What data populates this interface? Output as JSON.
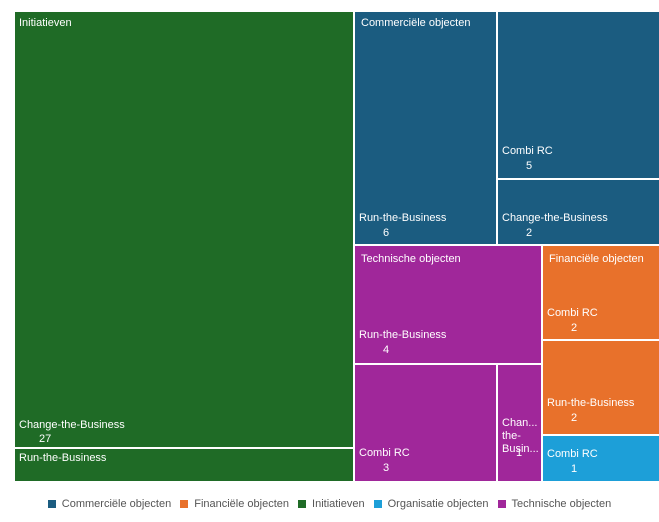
{
  "chart_data": {
    "type": "treemap",
    "colors": {
      "Commerciële objecten": "#1b5c80",
      "Financiële objecten": "#e8712b",
      "Initiatieven": "#1f6b26",
      "Organisatie objecten": "#1d9fd8",
      "Technische objecten": "#a0279a"
    },
    "groups": [
      {
        "name": "Initiatieven",
        "label": "Initiatieven",
        "children": [
          {
            "name": "Change-the-Business",
            "value": 27,
            "value_label": "27"
          },
          {
            "name": "Run-the-Business",
            "value": 1.5,
            "value_label": ""
          }
        ]
      },
      {
        "name": "Commerciële objecten",
        "label": "Commerciële objecten",
        "children": [
          {
            "name": "Run-the-Business",
            "value": 6,
            "value_label": "6"
          },
          {
            "name": "Combi RC",
            "value": 5,
            "value_label": "5"
          },
          {
            "name": "Change-the-Business",
            "value": 2,
            "value_label": "2"
          }
        ]
      },
      {
        "name": "Technische objecten",
        "label": "Technische objecten",
        "children": [
          {
            "name": "Run-the-Business",
            "value": 4,
            "value_label": "4"
          },
          {
            "name": "Combi RC",
            "value": 3,
            "value_label": "3"
          },
          {
            "name": "Chan... the- Busin...",
            "value": 1,
            "value_label": "1"
          }
        ]
      },
      {
        "name": "Financiële objecten",
        "label": "Financiële objecten",
        "children": [
          {
            "name": "Combi RC",
            "value": 2,
            "value_label": "2"
          },
          {
            "name": "Run-the-Business",
            "value": 2,
            "value_label": "2"
          }
        ]
      },
      {
        "name": "Organisatie objecten",
        "label": "",
        "children": [
          {
            "name": "Combi RC",
            "value": 1,
            "value_label": "1"
          }
        ]
      }
    ],
    "legend": {
      "position": "bottom",
      "entries": [
        "Commerciële objecten",
        "Financiële objecten",
        "Initiatieven",
        "Organisatie objecten",
        "Technische objecten"
      ]
    }
  }
}
